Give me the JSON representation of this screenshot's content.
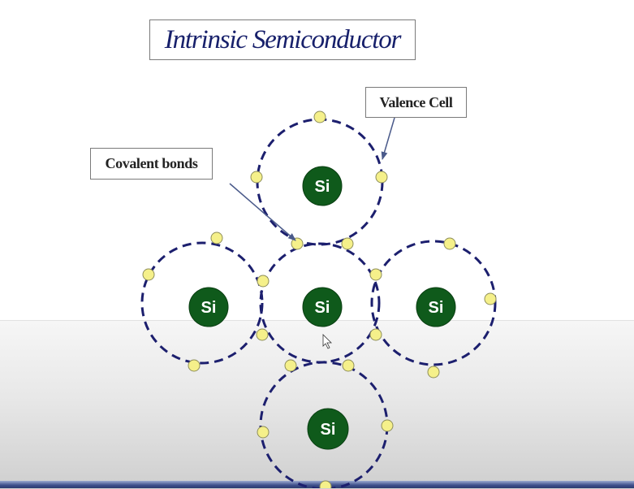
{
  "title": "Intrinsic Semiconductor",
  "labels": {
    "valence_cell": "Valence Cell",
    "covalent_bonds": "Covalent bonds"
  },
  "atoms": {
    "top": "Si",
    "left": "Si",
    "center": "Si",
    "right": "Si",
    "bottom": "Si"
  },
  "colors": {
    "title": "#17206b",
    "orbit": "#1c1f6e",
    "nucleus": "#0f5a1b",
    "electron": "#f5f08a"
  }
}
